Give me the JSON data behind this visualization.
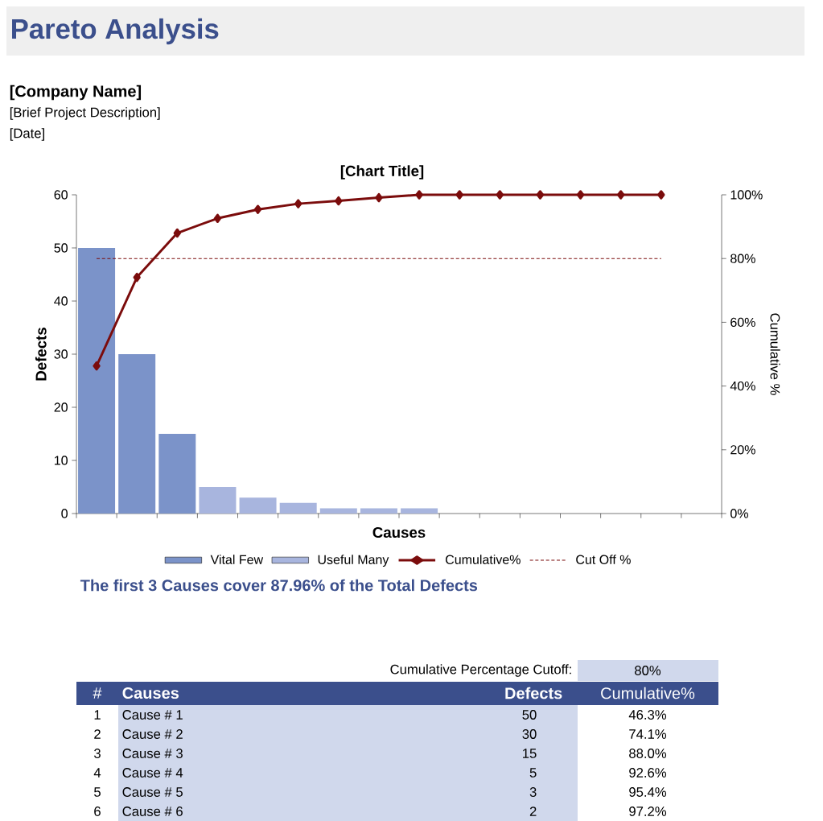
{
  "chart_data": {
    "type": "bar",
    "title": "Pareto Analysis",
    "subtitle": "[Chart Title]",
    "xlabel": "Causes",
    "ylabel": "Defects",
    "y2label": "Cumulative %",
    "categories": [
      null,
      null,
      null,
      null,
      null,
      null,
      null,
      null,
      null,
      null,
      null,
      null,
      null,
      null,
      null,
      null
    ],
    "series": [
      {
        "name": "Vital Few",
        "color": "#7b93c9",
        "values": [
          50,
          30,
          15,
          null,
          null,
          null,
          null,
          null,
          null,
          null,
          null,
          null,
          null,
          null,
          null,
          null
        ]
      },
      {
        "name": "Useful Many",
        "color": "#a8b5de",
        "values": [
          null,
          null,
          null,
          5,
          3,
          2,
          1,
          1,
          1,
          0,
          0,
          0,
          0,
          0,
          0,
          null
        ]
      },
      {
        "name": "Cumulative%",
        "type": "line",
        "axis": "y2",
        "color": "#7b0c0c",
        "marker": "diamond",
        "line_style": "solid",
        "values": [
          46.3,
          74.1,
          88.0,
          92.6,
          95.4,
          97.2,
          98.1,
          99.1,
          100,
          100,
          100,
          100,
          100,
          100,
          100,
          null
        ]
      },
      {
        "name": "Cut Off %",
        "type": "line",
        "axis": "y2",
        "color": "#7b0c0c",
        "marker": "none",
        "line_style": "dashed",
        "values": [
          80,
          80,
          80,
          80,
          80,
          80,
          80,
          80,
          80,
          80,
          80,
          80,
          80,
          80,
          80,
          null
        ]
      }
    ],
    "ylim": [
      0,
      60
    ],
    "yticks": [
      0,
      10,
      20,
      30,
      40,
      50,
      60
    ],
    "y2lim": [
      0,
      100
    ],
    "y2ticks": [
      {
        "value": 0,
        "label": "0%"
      },
      {
        "value": 20,
        "label": "20%"
      },
      {
        "value": 40,
        "label": "40%"
      },
      {
        "value": 60,
        "label": "60%"
      },
      {
        "value": 80,
        "label": "80%"
      },
      {
        "value": 100,
        "label": "100%"
      }
    ],
    "legend": "bottom",
    "annotations": [
      "[Company Name]",
      "[Brief Project Description]",
      "[Date]",
      "The first 3 Causes cover 87.96% of the Total Defects",
      "Cumulative Percentage Cutoff:",
      "80%",
      "#",
      "Causes",
      "Defects",
      "Cumulative%",
      "1",
      "Cause # 1",
      "50",
      "46.3%",
      "2",
      "Cause # 2",
      "30",
      "74.1%",
      "3",
      "Cause # 3",
      "15",
      "88.0%",
      "4",
      "Cause # 4",
      "5",
      "92.6%",
      "5",
      "Cause # 5",
      "3",
      "95.4%",
      "6",
      "Cause # 6",
      "2",
      "97.2%"
    ]
  }
}
